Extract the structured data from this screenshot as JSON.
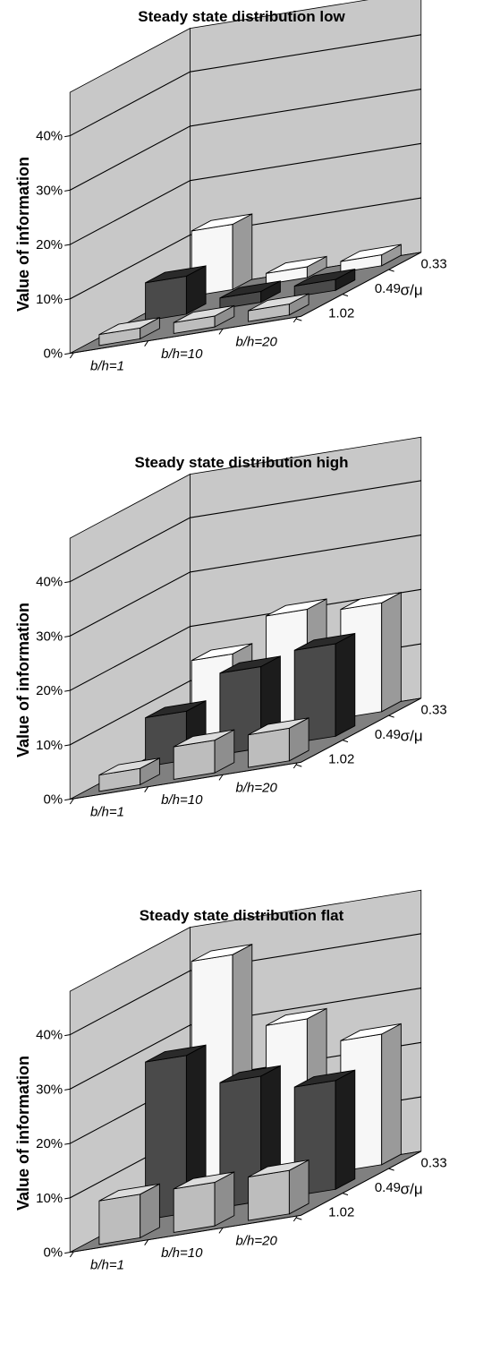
{
  "colors": {
    "wall": "#c8c8c8",
    "floor": "#808080",
    "series": {
      "1.02": {
        "front": "#bdbdbd",
        "side": "#8e8e8e",
        "top": "#dcdcdc"
      },
      "0.49": {
        "front": "#4a4a4a",
        "side": "#1c1c1c",
        "top": "#2a2a2a"
      },
      "0.33": {
        "front": "#f7f7f7",
        "side": "#9a9a9a",
        "top": "#ffffff"
      }
    }
  },
  "chart_data": [
    {
      "type": "bar3d",
      "title": "Steady state distribution low",
      "ylabel": "Value of information",
      "zlabel": "σ/μ",
      "ylim": [
        0,
        0.4
      ],
      "yticks": [
        "0%",
        "10%",
        "20%",
        "30%",
        "40%"
      ],
      "categories": [
        "b/h=1",
        "b/h=10",
        "b/h=20"
      ],
      "series": [
        {
          "name": "1.02",
          "values": [
            0.02,
            0.02,
            0.02
          ]
        },
        {
          "name": "0.49",
          "values": [
            0.07,
            0.02,
            0.02
          ]
        },
        {
          "name": "0.33",
          "values": [
            0.12,
            0.02,
            0.02
          ]
        }
      ]
    },
    {
      "type": "bar3d",
      "title": "Steady state distribution high",
      "ylabel": "Value of information",
      "zlabel": "σ/μ",
      "ylim": [
        0,
        0.4
      ],
      "yticks": [
        "0%",
        "10%",
        "20%",
        "30%",
        "40%"
      ],
      "categories": [
        "b/h=1",
        "b/h=10",
        "b/h=20"
      ],
      "series": [
        {
          "name": "1.02",
          "values": [
            0.03,
            0.06,
            0.06
          ]
        },
        {
          "name": "0.49",
          "values": [
            0.09,
            0.15,
            0.17
          ]
        },
        {
          "name": "0.33",
          "values": [
            0.15,
            0.21,
            0.2
          ]
        }
      ]
    },
    {
      "type": "bar3d",
      "title": "Steady state distribution flat",
      "ylabel": "Value of information",
      "zlabel": "σ/μ",
      "ylim": [
        0,
        0.4
      ],
      "yticks": [
        "0%",
        "10%",
        "20%",
        "30%",
        "40%"
      ],
      "categories": [
        "b/h=1",
        "b/h=10",
        "b/h=20"
      ],
      "series": [
        {
          "name": "1.02",
          "values": [
            0.08,
            0.08,
            0.08
          ]
        },
        {
          "name": "0.49",
          "values": [
            0.29,
            0.23,
            0.2
          ]
        },
        {
          "name": "0.33",
          "values": [
            0.43,
            0.29,
            0.24
          ]
        }
      ]
    }
  ]
}
